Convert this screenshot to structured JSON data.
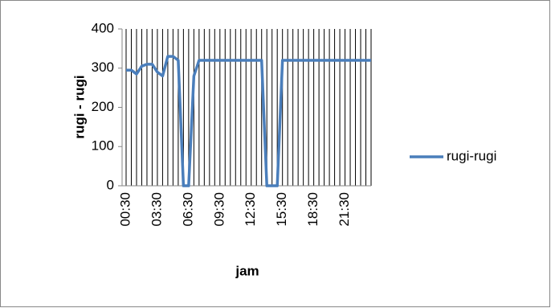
{
  "chart_data": {
    "type": "line",
    "x_label": "jam",
    "y_label": "rugi - rugi",
    "categories": [
      "00:30",
      null,
      null,
      null,
      null,
      null,
      "03:30",
      null,
      null,
      null,
      null,
      null,
      "06:30",
      null,
      null,
      null,
      null,
      null,
      "09:30",
      null,
      null,
      null,
      null,
      null,
      "12:30",
      null,
      null,
      null,
      null,
      null,
      "15:30",
      null,
      null,
      null,
      null,
      null,
      "18:30",
      null,
      null,
      null,
      null,
      null,
      "21:30",
      null,
      null,
      null,
      null,
      null
    ],
    "series": [
      {
        "name": "rugi-rugi",
        "color": "#4a7ebb",
        "values": [
          295,
          295,
          285,
          305,
          310,
          310,
          290,
          280,
          330,
          330,
          320,
          0,
          0,
          280,
          320,
          320,
          320,
          320,
          320,
          320,
          320,
          320,
          320,
          320,
          320,
          320,
          320,
          0,
          0,
          0,
          320,
          320,
          320,
          320,
          320,
          320,
          320,
          320,
          320,
          320,
          320,
          320,
          320,
          320,
          320,
          320,
          320,
          320
        ]
      }
    ],
    "ylim": [
      0,
      400
    ],
    "yticks": [
      0,
      100,
      200,
      300,
      400
    ],
    "vertical_grid": true,
    "legend": "right"
  }
}
